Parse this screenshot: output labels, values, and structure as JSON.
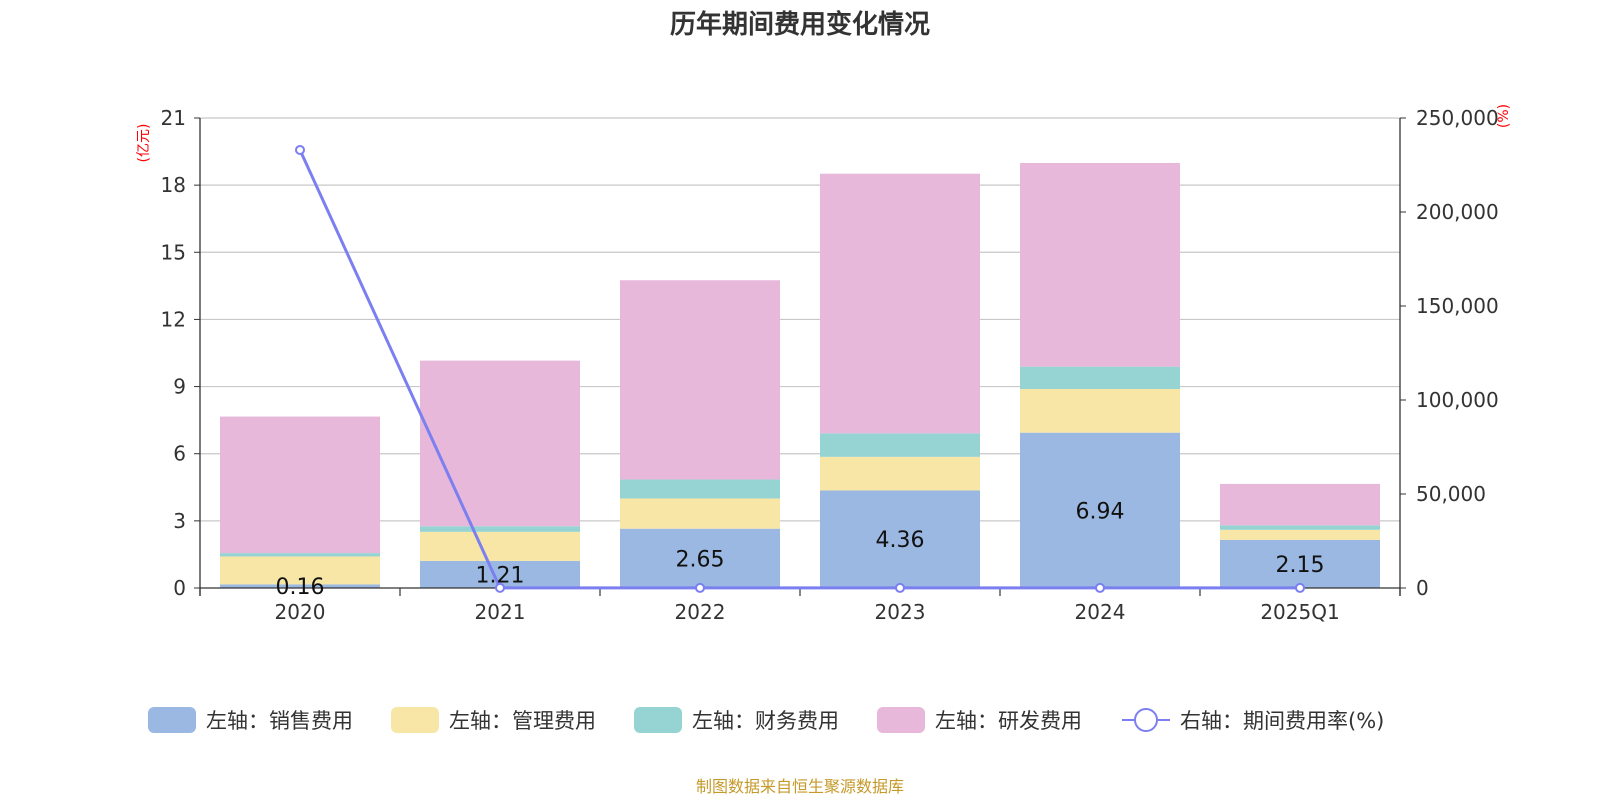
{
  "chart_data": {
    "type": "bar",
    "title": "历年期间费用变化情况",
    "categories": [
      "2020",
      "2021",
      "2022",
      "2023",
      "2024",
      "2025Q1"
    ],
    "left_axis": {
      "unit": "(亿元)",
      "min": 0,
      "max": 21,
      "ticks": [
        "0",
        "3",
        "6",
        "9",
        "12",
        "15",
        "18",
        "21"
      ]
    },
    "right_axis": {
      "unit": "(%)",
      "min": 0,
      "max": 250000,
      "ticks": [
        "0",
        "50,000",
        "100,000",
        "150,000",
        "200,000",
        "250,000"
      ]
    },
    "series": [
      {
        "name": "左轴：销售费用",
        "axis": "left",
        "stack": true,
        "color": "#9ab8e1",
        "values": [
          0.16,
          1.21,
          2.65,
          4.36,
          6.94,
          2.15
        ],
        "labels": [
          "0.16",
          "1.21",
          "2.65",
          "4.36",
          "6.94",
          "2.15"
        ]
      },
      {
        "name": "左轴：管理费用",
        "axis": "left",
        "stack": true,
        "color": "#f7e6a6",
        "values": [
          1.25,
          1.3,
          1.35,
          1.5,
          1.95,
          0.45
        ]
      },
      {
        "name": "左轴：财务费用",
        "axis": "left",
        "stack": true,
        "color": "#96d3d3",
        "values": [
          0.15,
          0.25,
          0.85,
          1.05,
          1.0,
          0.2
        ]
      },
      {
        "name": "左轴：研发费用",
        "axis": "left",
        "stack": true,
        "color": "#e7b8d9",
        "values": [
          6.1,
          7.4,
          8.9,
          11.6,
          9.1,
          1.85
        ]
      },
      {
        "name": "右轴：期间费用率(%)",
        "axis": "right",
        "type": "line",
        "color": "#7b7ff0",
        "values": [
          233000,
          60,
          45,
          40,
          40,
          45
        ]
      }
    ],
    "source": "制图数据来自恒生聚源数据库"
  }
}
